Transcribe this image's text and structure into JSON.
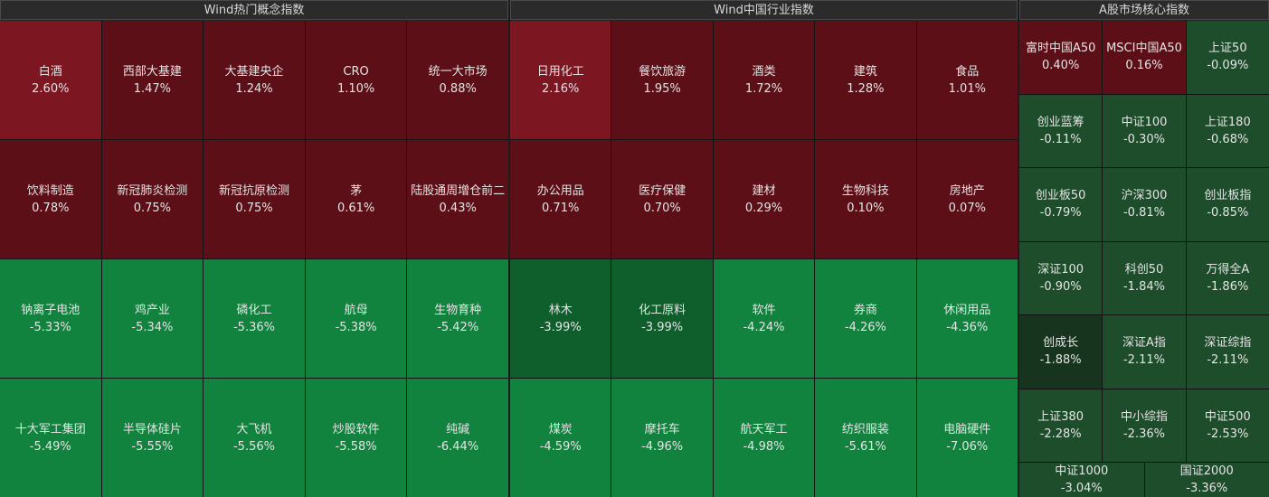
{
  "panels": {
    "concept": {
      "title": "Wind热门概念指数",
      "tiles": [
        {
          "name": "白酒",
          "value": "2.60%"
        },
        {
          "name": "西部大基建",
          "value": "1.47%"
        },
        {
          "name": "大基建央企",
          "value": "1.24%"
        },
        {
          "name": "CRO",
          "value": "1.10%"
        },
        {
          "name": "统一大市场",
          "value": "0.88%"
        },
        {
          "name": "饮料制造",
          "value": "0.78%"
        },
        {
          "name": "新冠肺炎检测",
          "value": "0.75%"
        },
        {
          "name": "新冠抗原检测",
          "value": "0.75%"
        },
        {
          "name": "茅",
          "value": "0.61%"
        },
        {
          "name": "陆股通周增仓前二",
          "value": "0.43%"
        },
        {
          "name": "钠离子电池",
          "value": "-5.33%"
        },
        {
          "name": "鸡产业",
          "value": "-5.34%"
        },
        {
          "name": "磷化工",
          "value": "-5.36%"
        },
        {
          "name": "航母",
          "value": "-5.38%"
        },
        {
          "name": "生物育种",
          "value": "-5.42%"
        },
        {
          "name": "十大军工集团",
          "value": "-5.49%"
        },
        {
          "name": "半导体硅片",
          "value": "-5.55%"
        },
        {
          "name": "大飞机",
          "value": "-5.56%"
        },
        {
          "name": "炒股软件",
          "value": "-5.58%"
        },
        {
          "name": "纯碱",
          "value": "-6.44%"
        }
      ]
    },
    "industry": {
      "title": "Wind中国行业指数",
      "tiles": [
        {
          "name": "日用化工",
          "value": "2.16%"
        },
        {
          "name": "餐饮旅游",
          "value": "1.95%"
        },
        {
          "name": "酒类",
          "value": "1.72%"
        },
        {
          "name": "建筑",
          "value": "1.28%"
        },
        {
          "name": "食品",
          "value": "1.01%"
        },
        {
          "name": "办公用品",
          "value": "0.71%"
        },
        {
          "name": "医疗保健",
          "value": "0.70%"
        },
        {
          "name": "建材",
          "value": "0.29%"
        },
        {
          "name": "生物科技",
          "value": "0.10%"
        },
        {
          "name": "房地产",
          "value": "0.07%"
        },
        {
          "name": "林木",
          "value": "-3.99%"
        },
        {
          "name": "化工原料",
          "value": "-3.99%"
        },
        {
          "name": "软件",
          "value": "-4.24%"
        },
        {
          "name": "券商",
          "value": "-4.26%"
        },
        {
          "name": "休闲用品",
          "value": "-4.36%"
        },
        {
          "name": "煤炭",
          "value": "-4.59%"
        },
        {
          "name": "摩托车",
          "value": "-4.96%"
        },
        {
          "name": "航天军工",
          "value": "-4.98%"
        },
        {
          "name": "纺织服装",
          "value": "-5.61%"
        },
        {
          "name": "电脑硬件",
          "value": "-7.06%"
        }
      ]
    },
    "core": {
      "title": "A股市场核心指数",
      "tiles": [
        {
          "name": "富时中国A50",
          "value": "0.40%"
        },
        {
          "name": "MSCI中国A50",
          "value": "0.16%"
        },
        {
          "name": "上证50",
          "value": "-0.09%"
        },
        {
          "name": "创业蓝筹",
          "value": "-0.11%"
        },
        {
          "name": "中证100",
          "value": "-0.30%"
        },
        {
          "name": "上证180",
          "value": "-0.68%"
        },
        {
          "name": "创业板50",
          "value": "-0.79%"
        },
        {
          "name": "沪深300",
          "value": "-0.81%"
        },
        {
          "name": "创业板指",
          "value": "-0.85%"
        },
        {
          "name": "深证100",
          "value": "-0.90%"
        },
        {
          "name": "科创50",
          "value": "-1.84%"
        },
        {
          "name": "万得全A",
          "value": "-1.86%"
        },
        {
          "name": "创成长",
          "value": "-1.88%"
        },
        {
          "name": "深证A指",
          "value": "-2.11%"
        },
        {
          "name": "深证综指",
          "value": "-2.11%"
        },
        {
          "name": "上证380",
          "value": "-2.28%"
        },
        {
          "name": "中小综指",
          "value": "-2.36%"
        },
        {
          "name": "中证500",
          "value": "-2.53%"
        },
        {
          "name": "中证1000",
          "value": "-3.04%"
        },
        {
          "name": "国证2000",
          "value": "-3.36%"
        }
      ]
    }
  },
  "colors": {
    "strong_up": "#7c1620",
    "up": "#5c0f16",
    "mild_down": "#1e4d2b",
    "dark_down": "#17351e",
    "moderate_down": "#0f5f2d",
    "strong_down": "#12833e"
  }
}
